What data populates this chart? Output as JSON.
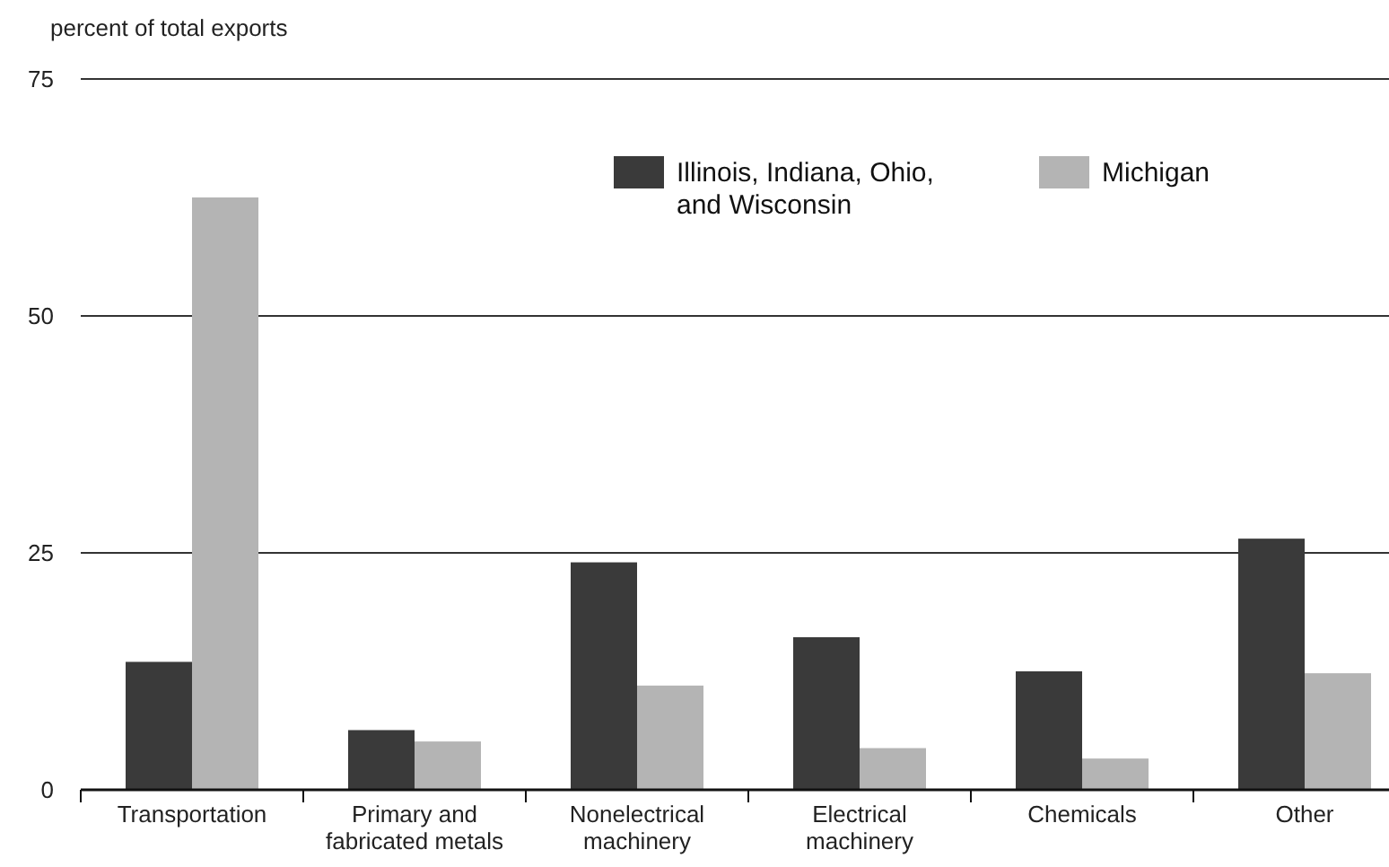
{
  "chart_data": {
    "type": "bar",
    "ylabel": "percent of total exports",
    "categories": [
      "Transportation",
      "Primary and fabricated metals",
      "Nonelectrical machinery",
      "Electrical machinery",
      "Chemicals",
      "Other"
    ],
    "series": [
      {
        "name": "Illinois, Indiana, Ohio, and Wisconsin",
        "color": "#3a3a3a",
        "values": [
          13.5,
          6.3,
          24.0,
          16.1,
          12.5,
          26.5
        ]
      },
      {
        "name": "Michigan",
        "color": "#b4b4b4",
        "values": [
          62.5,
          5.1,
          11.0,
          4.4,
          3.3,
          12.3
        ]
      }
    ],
    "ylim": [
      0,
      75
    ],
    "yticks": [
      0,
      25,
      50,
      75
    ],
    "grid": "y",
    "legend": "top right"
  }
}
